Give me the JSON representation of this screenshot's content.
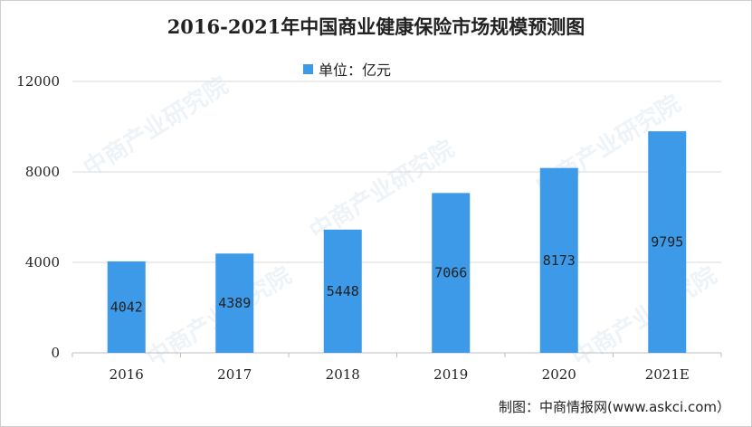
{
  "title": "2016-2021年中国商业健康保险市场规模预测图",
  "legend_label": "单位：亿元",
  "source": "制图：中商情报网(www.askci.com）",
  "watermark": "中商产业研究院",
  "colors": {
    "bar": "#3c9ae8",
    "grid": "#d9d9d9"
  },
  "chart_data": {
    "type": "bar",
    "title": "2016-2021年中国商业健康保险市场规模预测图",
    "categories": [
      "2016",
      "2017",
      "2018",
      "2019",
      "2020",
      "2021E"
    ],
    "series": [
      {
        "name": "单位：亿元",
        "values": [
          4042,
          4389,
          5448,
          7066,
          8173,
          9795
        ]
      }
    ],
    "data_labels": [
      "4042",
      "4389",
      "5448",
      "7066",
      "8173",
      "9795"
    ],
    "yticks": [
      0,
      4000,
      8000,
      12000
    ],
    "ylim": [
      0,
      12000
    ],
    "xlabel": "",
    "ylabel": "",
    "grid": true,
    "legend": "top-center"
  }
}
